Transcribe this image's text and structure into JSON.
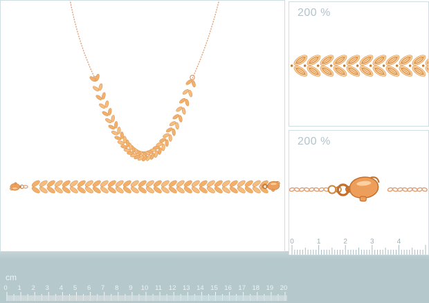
{
  "zoom_panels": [
    {
      "label": "200 %"
    },
    {
      "label": "200 %"
    }
  ],
  "main_ruler": {
    "unit": "cm",
    "labels": [
      "0",
      "1",
      "2",
      "3",
      "4",
      "5",
      "6",
      "7",
      "8",
      "9",
      "10",
      "11",
      "12",
      "13",
      "14",
      "15",
      "16",
      "17",
      "18",
      "19",
      "20"
    ]
  },
  "detail_ruler": {
    "labels": [
      "0",
      "1",
      "2",
      "3",
      "4"
    ]
  },
  "colors": {
    "panel_border": "#cedde1",
    "label": "#b3c4cb",
    "strip_top": "#c6d5d8",
    "strip_bg": "#b5c8cc",
    "strip_text": "#eef4f5",
    "strip_tick": "#f7fbfb",
    "detail_tick": "#a8bcc2",
    "detail_text": "#9cb0b8",
    "gold_fill": "#f6bd82",
    "gold_fill_alt": "#f2b06c",
    "gold_zoom_fill": "#f9cfa0",
    "gold_stroke": "#dd9850",
    "gold_detail": "#cf8436",
    "gold_dot": "#c77c2b",
    "chain": "#dfa077",
    "clasp_fill": "#ee9e5b",
    "clasp_stroke": "#c3702c",
    "clasp_highlight": "#ffd9ab"
  }
}
